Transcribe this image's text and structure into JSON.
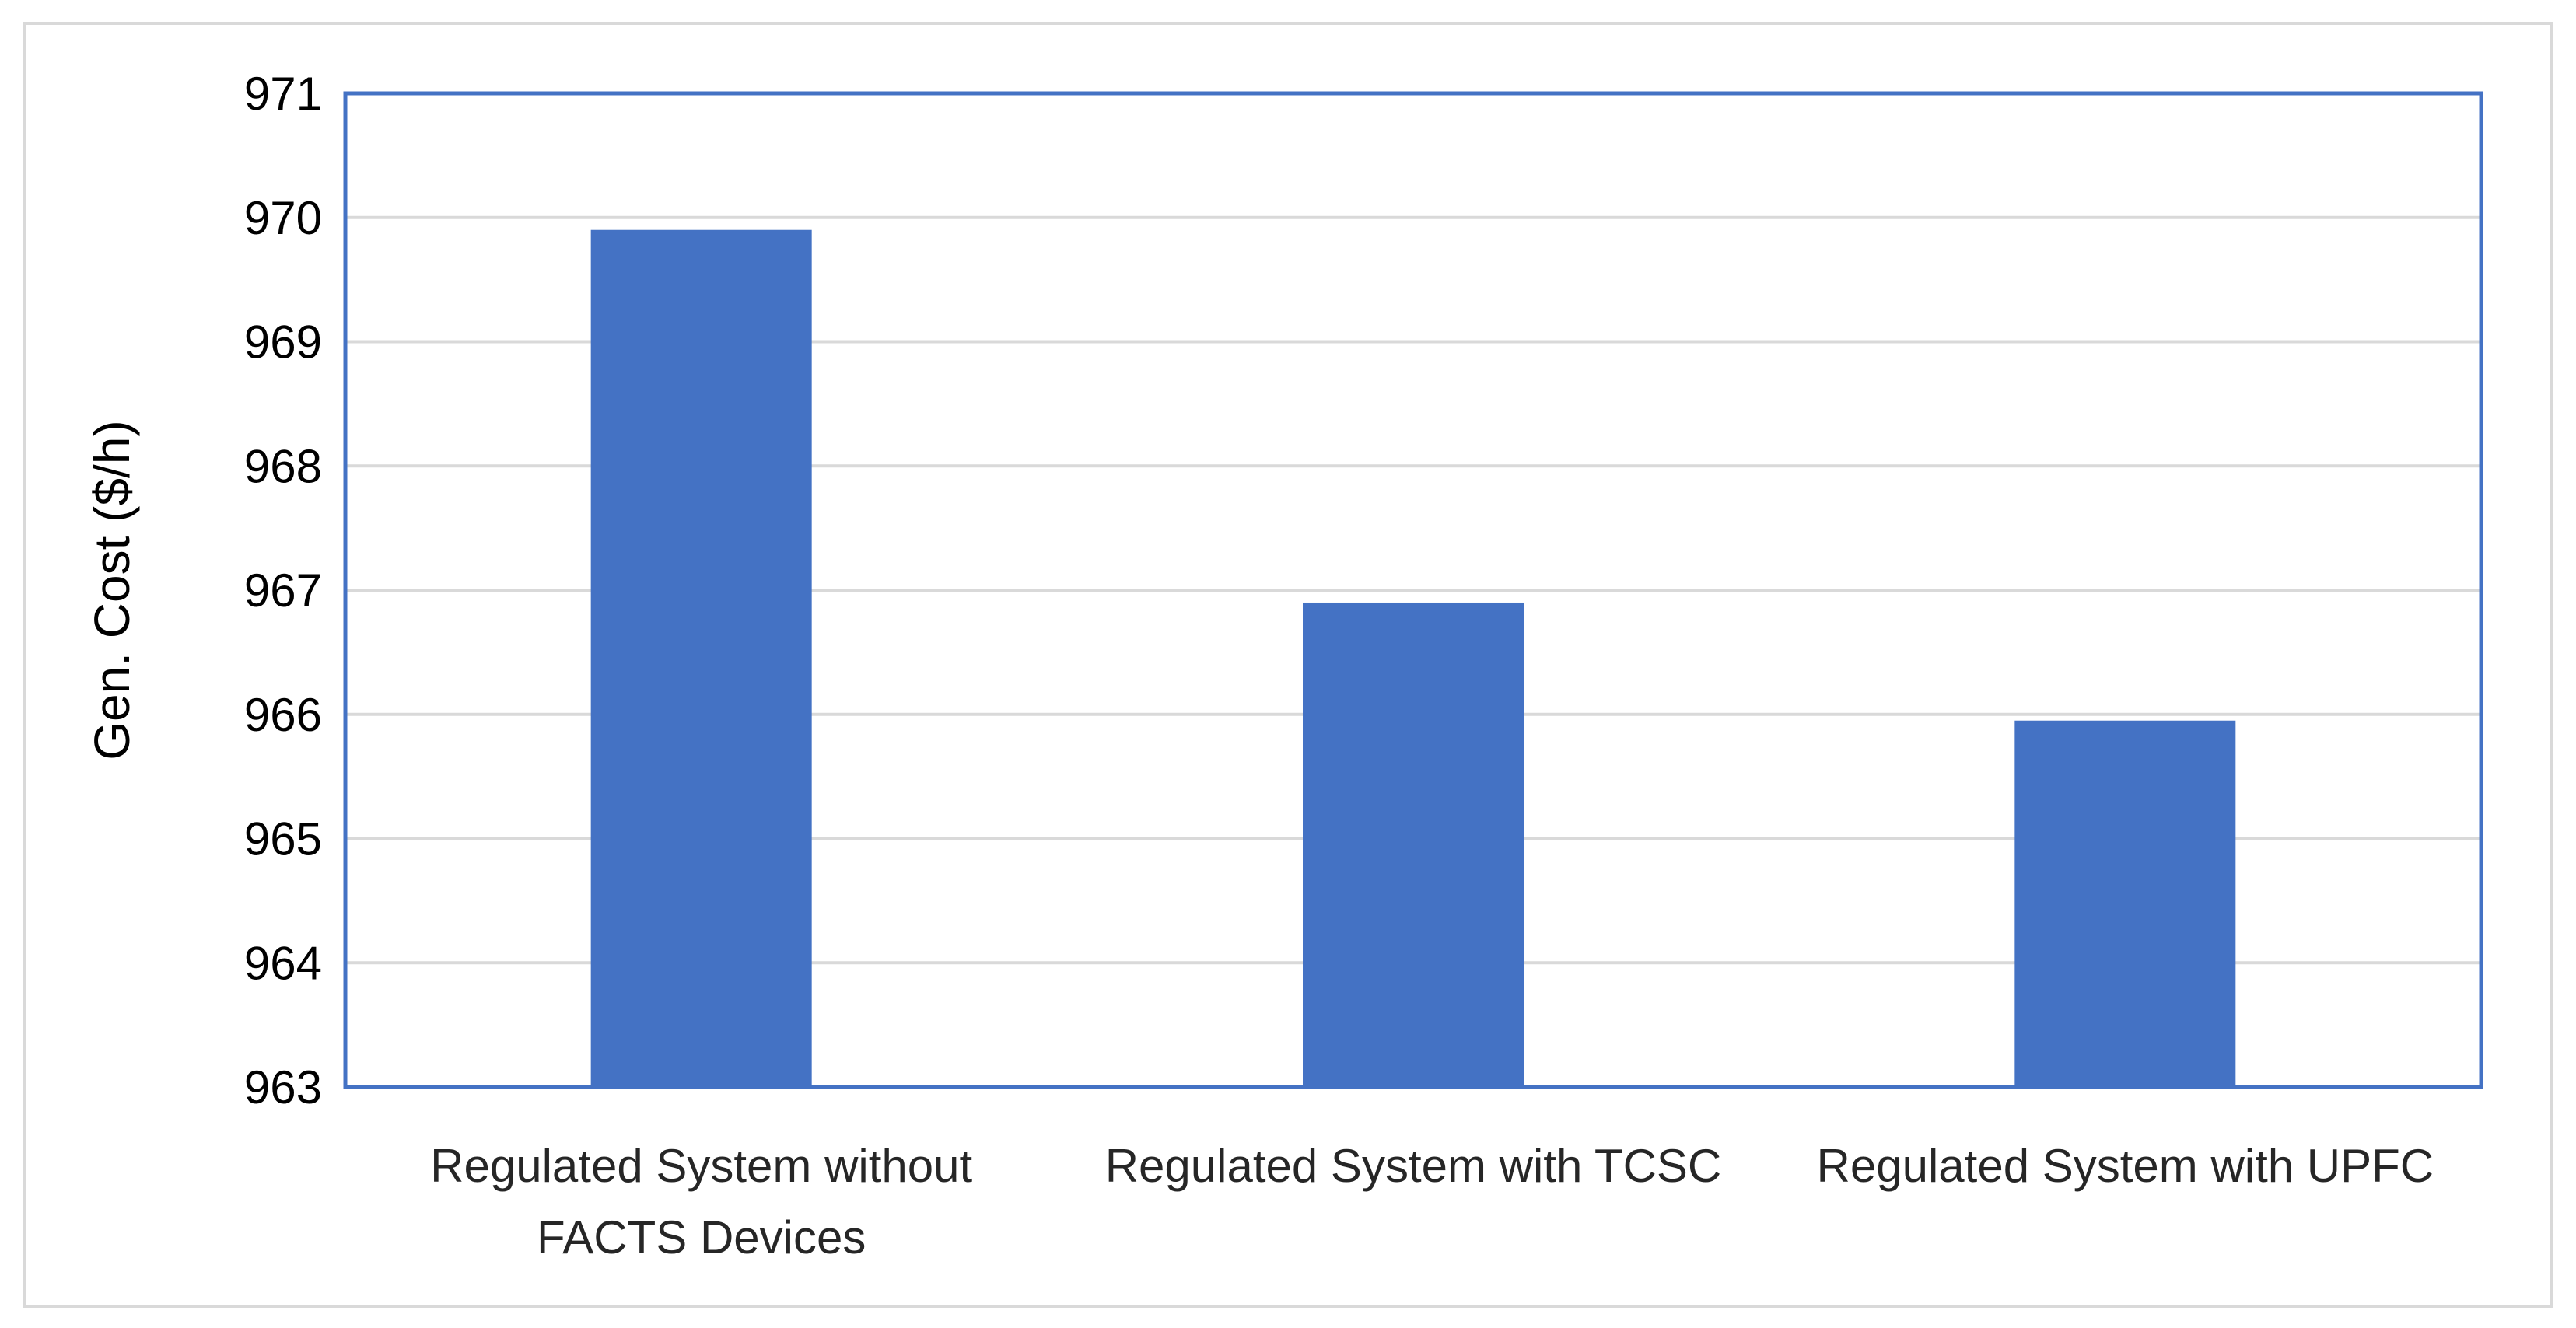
{
  "chart_data": {
    "type": "bar",
    "categories": [
      [
        "Regulated System without",
        "FACTS Devices"
      ],
      [
        "Regulated System with TCSC"
      ],
      [
        "Regulated System with UPFC"
      ]
    ],
    "values": [
      969.9,
      966.9,
      965.95
    ],
    "ylabel": "Gen. Cost ($/h)",
    "xlabel": "",
    "ylim": [
      963,
      971
    ],
    "yticks": [
      963,
      964,
      965,
      966,
      967,
      968,
      969,
      970,
      971
    ],
    "grid": true,
    "legend": "none"
  },
  "colors": {
    "bar": "#4472c4",
    "plot_border": "#4472c4",
    "gridline": "#d9d9d9",
    "frame_border": "#d9d9d9"
  }
}
